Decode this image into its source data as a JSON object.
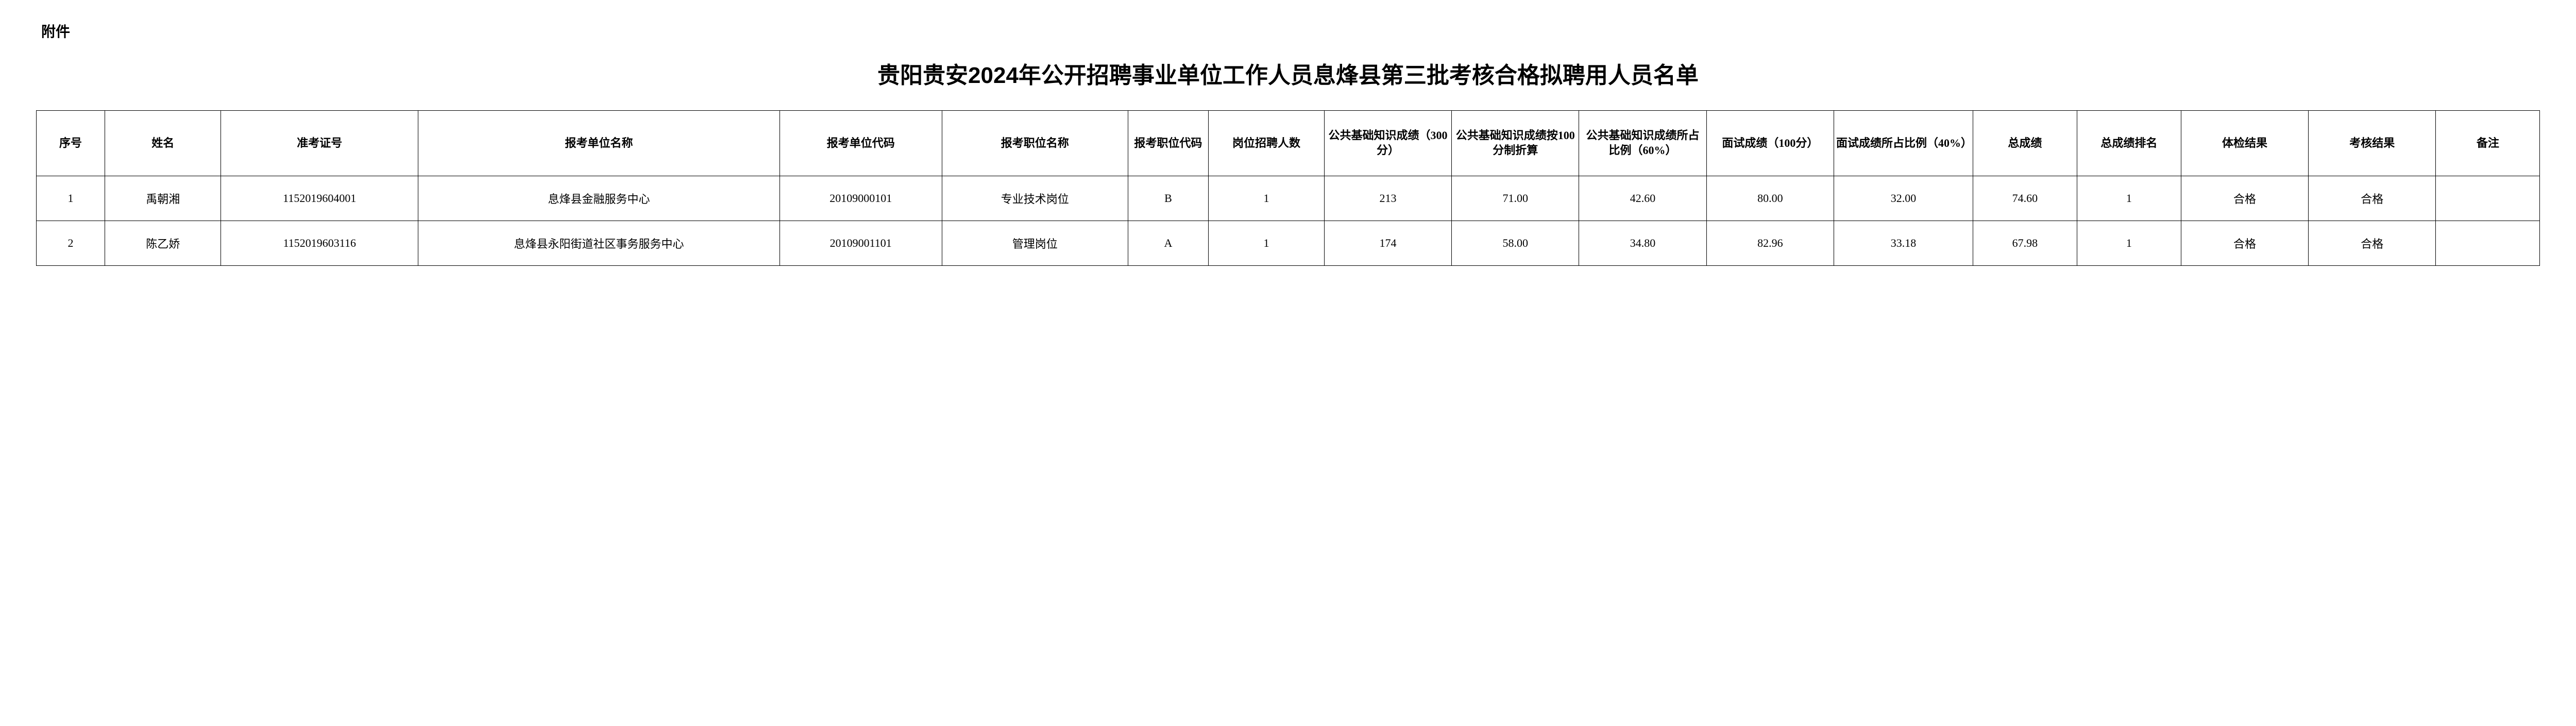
{
  "attachment_label": "附件",
  "title": "贵阳贵安2024年公开招聘事业单位工作人员息烽县第三批考核合格拟聘用人员名单",
  "columns": [
    "序号",
    "姓名",
    "准考证号",
    "报考单位名称",
    "报考单位代码",
    "报考职位名称",
    "报考职位代码",
    "岗位招聘人数",
    "公共基础知识成绩（300分）",
    "公共基础知识成绩按100分制折算",
    "公共基础知识成绩所占比例（60%）",
    "面试成绩（100分）",
    "面试成绩所占比例（40%）",
    "总成绩",
    "总成绩排名",
    "体检结果",
    "考核结果",
    "备注"
  ],
  "rows": [
    {
      "seq": "1",
      "name": "禹朝湘",
      "ticket": "1152019604001",
      "unit": "息烽县金融服务中心",
      "unitcode": "20109000101",
      "position": "专业技术岗位",
      "poscode": "B",
      "recruit": "1",
      "score300": "213",
      "score100": "71.00",
      "score60": "42.60",
      "interview": "80.00",
      "interview40": "32.00",
      "total": "74.60",
      "rank": "1",
      "physical": "合格",
      "assess": "合格",
      "remark": ""
    },
    {
      "seq": "2",
      "name": "陈乙娇",
      "ticket": "1152019603116",
      "unit": "息烽县永阳街道社区事务服务中心",
      "unitcode": "20109001101",
      "position": "管理岗位",
      "poscode": "A",
      "recruit": "1",
      "score300": "174",
      "score100": "58.00",
      "score60": "34.80",
      "interview": "82.96",
      "interview40": "33.18",
      "total": "67.98",
      "rank": "1",
      "physical": "合格",
      "assess": "合格",
      "remark": ""
    }
  ]
}
